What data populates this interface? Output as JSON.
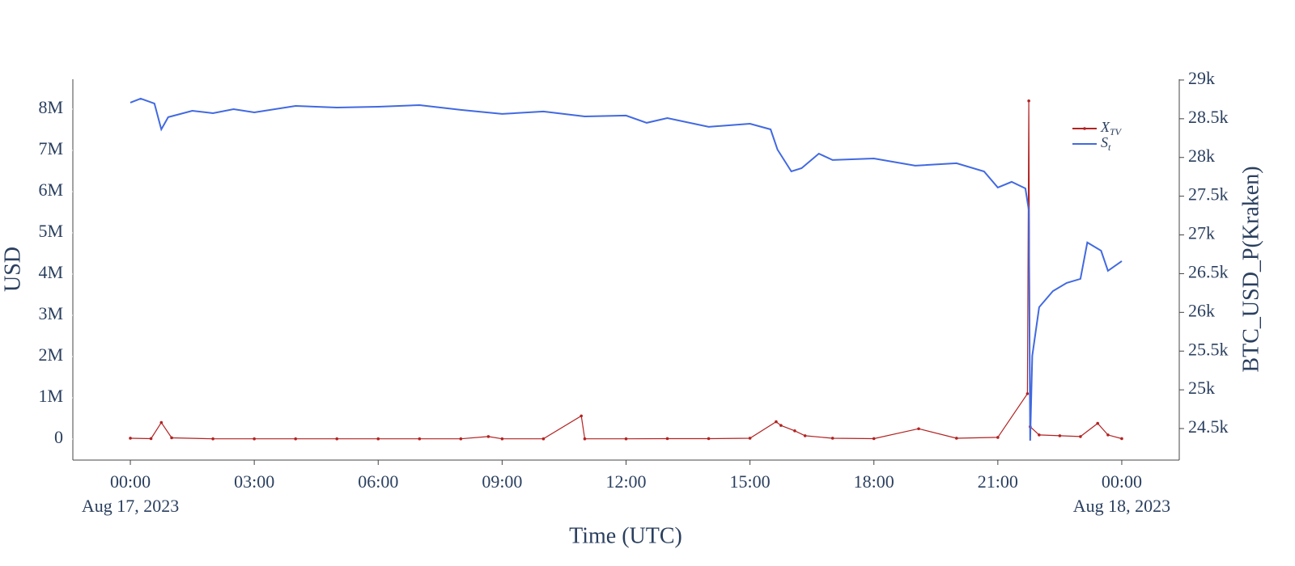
{
  "chart_data": {
    "type": "line",
    "x_title": "Time (UTC)",
    "y_title": "USD",
    "y2_title": "BTC_USD_P(Kraken)",
    "ylim": [
      -510000,
      8725000
    ],
    "yticks": [
      0,
      {
        "value": 1000000,
        "label": "1M"
      },
      {
        "value": 2000000,
        "label": "2M"
      },
      {
        "value": 3000000,
        "label": "3M"
      },
      {
        "value": 4000000,
        "label": "4M"
      },
      {
        "value": 5000000,
        "label": "5M"
      },
      {
        "value": 6000000,
        "label": "6M"
      },
      {
        "value": 7000000,
        "label": "7M"
      },
      {
        "value": 8000000,
        "label": "8M"
      }
    ],
    "y2lim": [
      24093,
      29010
    ],
    "y2ticks": [
      {
        "value": 24500,
        "label": "24.5k"
      },
      {
        "value": 25000,
        "label": "25k"
      },
      {
        "value": 25500,
        "label": "25.5k"
      },
      {
        "value": 26000,
        "label": "26k"
      },
      {
        "value": 26500,
        "label": "26.5k"
      },
      {
        "value": 27000,
        "label": "27k"
      },
      {
        "value": 27500,
        "label": "27.5k"
      },
      {
        "value": 28000,
        "label": "28k"
      },
      {
        "value": 28500,
        "label": "28.5k"
      },
      {
        "value": 29000,
        "label": "29k"
      }
    ],
    "xticks": [
      {
        "value": "2023-08-17 00:00",
        "label": "00:00",
        "sublabel": "Aug 17, 2023"
      },
      {
        "value": "2023-08-17 03:00",
        "label": "03:00"
      },
      {
        "value": "2023-08-17 06:00",
        "label": "06:00"
      },
      {
        "value": "2023-08-17 09:00",
        "label": "09:00"
      },
      {
        "value": "2023-08-17 12:00",
        "label": "12:00"
      },
      {
        "value": "2023-08-17 15:00",
        "label": "15:00"
      },
      {
        "value": "2023-08-17 18:00",
        "label": "18:00"
      },
      {
        "value": "2023-08-17 21:00",
        "label": "21:00"
      },
      {
        "value": "2023-08-18 00:00",
        "label": "00:00",
        "sublabel": "Aug 18, 2023"
      }
    ],
    "legend_position": "top-right",
    "series": [
      {
        "name": "X_TV",
        "color": "#b22222",
        "markers": true,
        "x": [
          "2023-08-17 00:00",
          "2023-08-17 00:30",
          "2023-08-17 00:45",
          "2023-08-17 01:00",
          "2023-08-17 02:00",
          "2023-08-17 03:00",
          "2023-08-17 04:00",
          "2023-08-17 05:00",
          "2023-08-17 06:00",
          "2023-08-17 07:00",
          "2023-08-17 08:00",
          "2023-08-17 08:40",
          "2023-08-17 09:00",
          "2023-08-17 10:00",
          "2023-08-17 10:55",
          "2023-08-17 11:00",
          "2023-08-17 12:00",
          "2023-08-17 13:00",
          "2023-08-17 14:00",
          "2023-08-17 15:00",
          "2023-08-17 15:38",
          "2023-08-17 15:45",
          "2023-08-17 16:05",
          "2023-08-17 16:20",
          "2023-08-17 17:00",
          "2023-08-17 18:00",
          "2023-08-17 19:05",
          "2023-08-17 20:00",
          "2023-08-17 21:00",
          "2023-08-17 21:43",
          "2023-08-17 21:45",
          "2023-08-17 21:47",
          "2023-08-17 22:00",
          "2023-08-17 22:30",
          "2023-08-17 23:00",
          "2023-08-17 23:25",
          "2023-08-17 23:40",
          "2023-08-18 00:00"
        ],
        "values": [
          20000,
          10000,
          400000,
          30000,
          5000,
          5000,
          5000,
          5000,
          5000,
          5000,
          5000,
          60000,
          5000,
          5000,
          560000,
          5000,
          5000,
          10000,
          10000,
          20000,
          420000,
          330000,
          200000,
          80000,
          20000,
          10000,
          250000,
          20000,
          40000,
          1100000,
          8200000,
          300000,
          100000,
          80000,
          60000,
          380000,
          100000,
          10000
        ]
      },
      {
        "name": "S_t",
        "color": "#4169e1",
        "axis": "y2",
        "markers": false,
        "x": [
          "2023-08-17 00:00",
          "2023-08-17 00:15",
          "2023-08-17 00:35",
          "2023-08-17 00:45",
          "2023-08-17 00:55",
          "2023-08-17 01:30",
          "2023-08-17 02:00",
          "2023-08-17 02:30",
          "2023-08-17 03:00",
          "2023-08-17 04:00",
          "2023-08-17 05:00",
          "2023-08-17 06:00",
          "2023-08-17 07:00",
          "2023-08-17 08:00",
          "2023-08-17 09:00",
          "2023-08-17 10:00",
          "2023-08-17 11:00",
          "2023-08-17 12:00",
          "2023-08-17 12:30",
          "2023-08-17 13:00",
          "2023-08-17 14:00",
          "2023-08-17 15:00",
          "2023-08-17 15:30",
          "2023-08-17 15:40",
          "2023-08-17 16:00",
          "2023-08-17 16:15",
          "2023-08-17 16:40",
          "2023-08-17 17:00",
          "2023-08-17 18:00",
          "2023-08-17 19:00",
          "2023-08-17 20:00",
          "2023-08-17 20:40",
          "2023-08-17 21:00",
          "2023-08-17 21:20",
          "2023-08-17 21:40",
          "2023-08-17 21:45",
          "2023-08-17 21:47",
          "2023-08-17 21:50",
          "2023-08-17 22:00",
          "2023-08-17 22:20",
          "2023-08-17 22:40",
          "2023-08-17 23:00",
          "2023-08-17 23:10",
          "2023-08-17 23:30",
          "2023-08-17 23:40",
          "2023-08-18 00:00"
        ],
        "values": [
          28708,
          28760,
          28697,
          28363,
          28520,
          28603,
          28572,
          28624,
          28582,
          28666,
          28645,
          28655,
          28676,
          28614,
          28562,
          28593,
          28530,
          28541,
          28447,
          28509,
          28395,
          28436,
          28363,
          28102,
          27820,
          27862,
          28050,
          27967,
          27987,
          27894,
          27925,
          27820,
          27612,
          27685,
          27601,
          27319,
          24344,
          25440,
          26067,
          26275,
          26380,
          26432,
          26902,
          26797,
          26537,
          26662
        ]
      }
    ]
  }
}
